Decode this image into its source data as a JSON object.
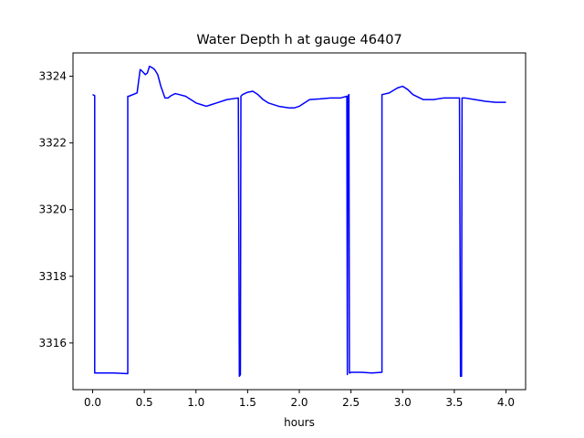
{
  "chart_data": {
    "type": "line",
    "title": "Water Depth h at gauge 46407",
    "xlabel": "hours",
    "ylabel": "",
    "xlim": [
      -0.19,
      4.19
    ],
    "ylim": [
      3314.6,
      3324.7
    ],
    "grid": false,
    "legend": "none",
    "xticks": [
      0.0,
      0.5,
      1.0,
      1.5,
      2.0,
      2.5,
      3.0,
      3.5,
      4.0
    ],
    "xtick_labels": [
      "0.0",
      "0.5",
      "1.0",
      "1.5",
      "2.0",
      "2.5",
      "3.0",
      "3.5",
      "4.0"
    ],
    "yticks": [
      3316,
      3318,
      3320,
      3322,
      3324
    ],
    "ytick_labels": [
      "3316",
      "3318",
      "3320",
      "3322",
      "3324"
    ],
    "series": [
      {
        "color": "#0000ff",
        "x": [
          0.0,
          0.02,
          0.02,
          0.1,
          0.2,
          0.34,
          0.34,
          0.35,
          0.43,
          0.46,
          0.48,
          0.51,
          0.53,
          0.55,
          0.58,
          0.6,
          0.63,
          0.66,
          0.7,
          0.73,
          0.76,
          0.8,
          0.84,
          0.9,
          0.95,
          1.0,
          1.05,
          1.1,
          1.15,
          1.2,
          1.3,
          1.41,
          1.42,
          1.43,
          1.435,
          1.45,
          1.5,
          1.55,
          1.6,
          1.65,
          1.7,
          1.8,
          1.9,
          1.95,
          2.0,
          2.05,
          2.1,
          2.2,
          2.3,
          2.4,
          2.46,
          2.465,
          2.47,
          2.48,
          2.485,
          2.49,
          2.5,
          2.6,
          2.7,
          2.8,
          2.8,
          2.87,
          2.95,
          3.0,
          3.05,
          3.1,
          3.2,
          3.3,
          3.4,
          3.55,
          3.56,
          3.57,
          3.575,
          3.6,
          3.7,
          3.8,
          3.9,
          4.0
        ],
        "y": [
          3323.45,
          3323.42,
          3315.1,
          3315.1,
          3315.1,
          3315.08,
          3323.4,
          3323.4,
          3323.5,
          3324.2,
          3324.15,
          3324.05,
          3324.1,
          3324.3,
          3324.25,
          3324.2,
          3324.05,
          3323.7,
          3323.35,
          3323.35,
          3323.42,
          3323.48,
          3323.45,
          3323.4,
          3323.3,
          3323.2,
          3323.15,
          3323.1,
          3323.15,
          3323.2,
          3323.3,
          3323.35,
          3315.0,
          3315.05,
          3323.4,
          3323.45,
          3323.52,
          3323.55,
          3323.45,
          3323.3,
          3323.2,
          3323.1,
          3323.05,
          3323.05,
          3323.1,
          3323.2,
          3323.3,
          3323.32,
          3323.35,
          3323.35,
          3323.4,
          3315.05,
          3323.4,
          3323.45,
          3315.1,
          3315.1,
          3315.12,
          3315.12,
          3315.1,
          3315.12,
          3323.45,
          3323.5,
          3323.65,
          3323.7,
          3323.6,
          3323.45,
          3323.3,
          3323.3,
          3323.35,
          3323.35,
          3315.0,
          3315.0,
          3323.35,
          3323.35,
          3323.3,
          3323.25,
          3323.22,
          3323.22
        ]
      }
    ]
  }
}
